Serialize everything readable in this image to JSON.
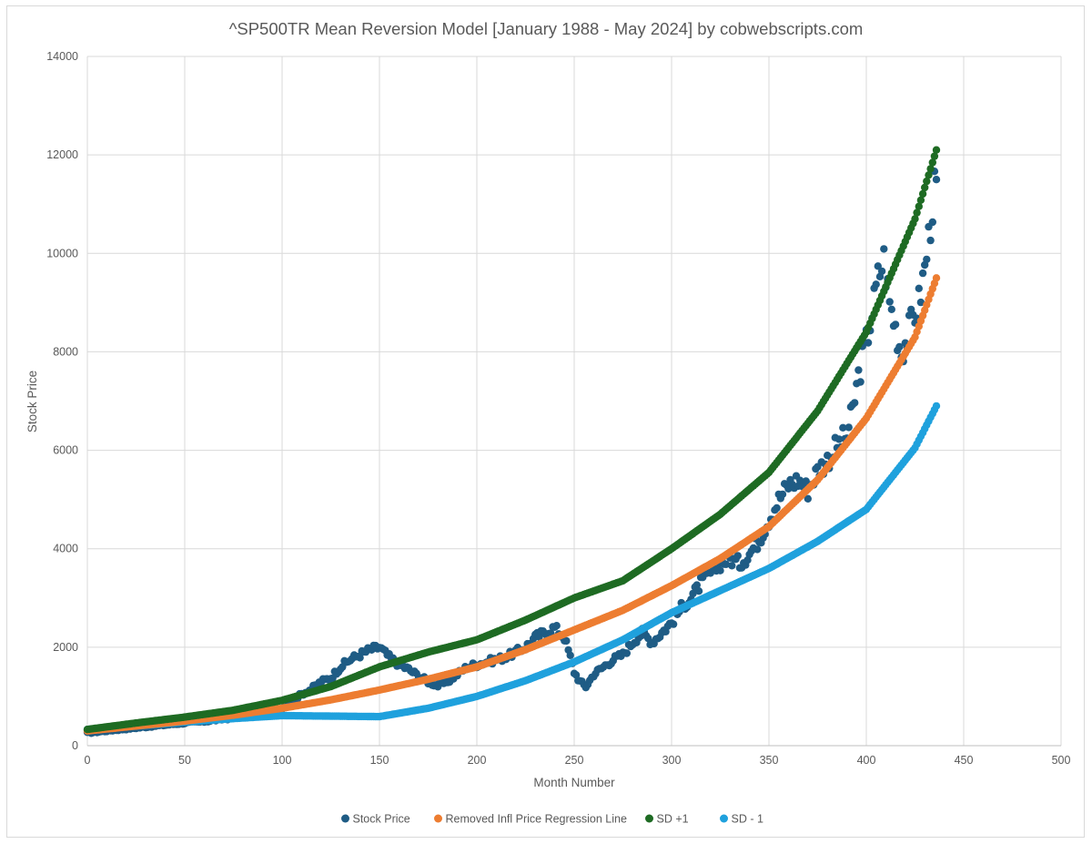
{
  "chart_data": {
    "type": "scatter",
    "title": "^SP500TR Mean Reversion Model [January 1988 - May 2024] by cobwebscripts.com",
    "xlabel": "Month Number",
    "ylabel": "Stock Price",
    "xlim": [
      0,
      500
    ],
    "ylim": [
      0,
      14000
    ],
    "x_ticks": [
      0,
      50,
      100,
      150,
      200,
      250,
      300,
      350,
      400,
      450,
      500
    ],
    "y_ticks": [
      0,
      2000,
      4000,
      6000,
      8000,
      10000,
      12000,
      14000
    ],
    "grid": true,
    "legend_position": "bottom",
    "series": [
      {
        "name": "Stock Price",
        "color": "#1f5c85",
        "points": [
          [
            0,
            260
          ],
          [
            10,
            300
          ],
          [
            20,
            340
          ],
          [
            30,
            380
          ],
          [
            40,
            420
          ],
          [
            50,
            460
          ],
          [
            60,
            490
          ],
          [
            70,
            540
          ],
          [
            80,
            590
          ],
          [
            90,
            640
          ],
          [
            100,
            760
          ],
          [
            105,
            880
          ],
          [
            110,
            1050
          ],
          [
            115,
            1150
          ],
          [
            120,
            1300
          ],
          [
            125,
            1380
          ],
          [
            130,
            1600
          ],
          [
            135,
            1750
          ],
          [
            140,
            1850
          ],
          [
            145,
            1950
          ],
          [
            150,
            2000
          ],
          [
            155,
            1800
          ],
          [
            160,
            1650
          ],
          [
            165,
            1550
          ],
          [
            170,
            1420
          ],
          [
            175,
            1300
          ],
          [
            180,
            1220
          ],
          [
            185,
            1300
          ],
          [
            190,
            1450
          ],
          [
            195,
            1600
          ],
          [
            200,
            1650
          ],
          [
            205,
            1700
          ],
          [
            210,
            1750
          ],
          [
            215,
            1800
          ],
          [
            220,
            1900
          ],
          [
            225,
            2000
          ],
          [
            230,
            2200
          ],
          [
            235,
            2300
          ],
          [
            240,
            2400
          ],
          [
            245,
            2200
          ],
          [
            248,
            1800
          ],
          [
            250,
            1500
          ],
          [
            253,
            1300
          ],
          [
            256,
            1200
          ],
          [
            260,
            1450
          ],
          [
            265,
            1600
          ],
          [
            270,
            1750
          ],
          [
            275,
            1850
          ],
          [
            280,
            2100
          ],
          [
            285,
            2300
          ],
          [
            290,
            2100
          ],
          [
            295,
            2300
          ],
          [
            300,
            2500
          ],
          [
            305,
            2800
          ],
          [
            310,
            3000
          ],
          [
            315,
            3300
          ],
          [
            320,
            3500
          ],
          [
            325,
            3700
          ],
          [
            330,
            3800
          ],
          [
            335,
            3700
          ],
          [
            340,
            3900
          ],
          [
            345,
            4200
          ],
          [
            350,
            4600
          ],
          [
            355,
            5000
          ],
          [
            360,
            5300
          ],
          [
            365,
            5400
          ],
          [
            370,
            5200
          ],
          [
            375,
            5600
          ],
          [
            380,
            5800
          ],
          [
            385,
            6100
          ],
          [
            390,
            6300
          ],
          [
            393,
            6800
          ],
          [
            396,
            7500
          ],
          [
            400,
            8200
          ],
          [
            403,
            8800
          ],
          [
            406,
            9500
          ],
          [
            409,
            9900
          ],
          [
            412,
            9000
          ],
          [
            415,
            8500
          ],
          [
            418,
            8000
          ],
          [
            421,
            8300
          ],
          [
            424,
            8700
          ],
          [
            427,
            9000
          ],
          [
            430,
            9700
          ],
          [
            432,
            10300
          ],
          [
            434,
            11000
          ],
          [
            436,
            11500
          ]
        ]
      },
      {
        "name": "Removed Infl Price Regression Line",
        "color": "#ed7d31",
        "points": [
          [
            0,
            300
          ],
          [
            25,
            400
          ],
          [
            50,
            500
          ],
          [
            75,
            620
          ],
          [
            100,
            760
          ],
          [
            125,
            930
          ],
          [
            150,
            1130
          ],
          [
            175,
            1350
          ],
          [
            200,
            1600
          ],
          [
            225,
            1950
          ],
          [
            250,
            2350
          ],
          [
            275,
            2750
          ],
          [
            300,
            3250
          ],
          [
            325,
            3800
          ],
          [
            350,
            4450
          ],
          [
            375,
            5400
          ],
          [
            400,
            6650
          ],
          [
            425,
            8300
          ],
          [
            436,
            9500
          ]
        ]
      },
      {
        "name": "SD +1",
        "color": "#1e6b23",
        "points": [
          [
            0,
            330
          ],
          [
            25,
            460
          ],
          [
            50,
            580
          ],
          [
            75,
            720
          ],
          [
            100,
            920
          ],
          [
            125,
            1200
          ],
          [
            150,
            1600
          ],
          [
            175,
            1900
          ],
          [
            200,
            2150
          ],
          [
            225,
            2550
          ],
          [
            250,
            3000
          ],
          [
            275,
            3350
          ],
          [
            300,
            4000
          ],
          [
            325,
            4700
          ],
          [
            350,
            5550
          ],
          [
            375,
            6800
          ],
          [
            400,
            8400
          ],
          [
            425,
            10700
          ],
          [
            436,
            12100
          ]
        ]
      },
      {
        "name": "SD - 1",
        "color": "#1fa1dd",
        "points": [
          [
            0,
            330
          ],
          [
            25,
            400
          ],
          [
            50,
            480
          ],
          [
            75,
            550
          ],
          [
            100,
            610
          ],
          [
            125,
            600
          ],
          [
            150,
            590
          ],
          [
            175,
            760
          ],
          [
            200,
            1000
          ],
          [
            225,
            1320
          ],
          [
            250,
            1700
          ],
          [
            275,
            2150
          ],
          [
            300,
            2700
          ],
          [
            325,
            3150
          ],
          [
            350,
            3600
          ],
          [
            375,
            4150
          ],
          [
            400,
            4800
          ],
          [
            425,
            6050
          ],
          [
            436,
            6900
          ]
        ]
      }
    ]
  }
}
